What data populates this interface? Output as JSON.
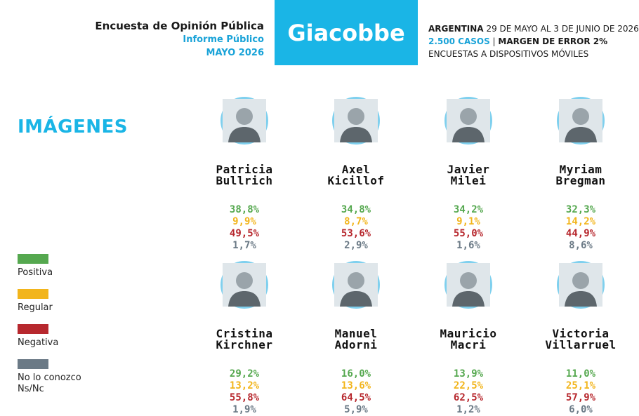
{
  "header": {
    "survey_title": "Encuesta de Opinión Pública",
    "report_type": "Informe Público",
    "report_date": "MAYO 2026",
    "brand": "Giacobbe",
    "country": "ARGENTINA",
    "date_range": "29 DE MAYO AL 3 DE JUNIO DE 2026",
    "cases": "2.500 CASOS",
    "separator": "|",
    "margin": "MARGEN DE ERROR 2%",
    "method": "ENCUESTAS A DISPOSITIVOS MÓVILES"
  },
  "section_title": "IMÁGENES",
  "colors": {
    "accent": "#1ab5e6",
    "positiva": "#55a84f",
    "regular": "#f2b51c",
    "negativa": "#b7282e",
    "no_conozco": "#6b7a86"
  },
  "legend": [
    {
      "key": "positiva",
      "label": "Positiva",
      "color": "#55a84f"
    },
    {
      "key": "regular",
      "label": "Regular",
      "color": "#f2b51c"
    },
    {
      "key": "negativa",
      "label": "Negativa",
      "color": "#b7282e"
    },
    {
      "key": "no_conozco",
      "label": "No lo conozco Ns/Nc",
      "label_line1": "No lo conozco",
      "label_line2": "Ns/Nc",
      "color": "#6b7a86"
    }
  ],
  "chart_data": {
    "type": "table",
    "columns": [
      "Positiva",
      "Regular",
      "Negativa",
      "No lo conozco Ns/Nc"
    ],
    "rows": [
      {
        "first": "Patricia",
        "last": "Bullrich",
        "values": [
          "38,8%",
          "9,9%",
          "49,5%",
          "1,7%"
        ]
      },
      {
        "first": "Axel",
        "last": "Kicillof",
        "values": [
          "34,8%",
          "8,7%",
          "53,6%",
          "2,9%"
        ]
      },
      {
        "first": "Javier",
        "last": "Milei",
        "values": [
          "34,2%",
          "9,1%",
          "55,0%",
          "1,6%"
        ]
      },
      {
        "first": "Myriam",
        "last": "Bregman",
        "values": [
          "32,3%",
          "14,2%",
          "44,9%",
          "8,6%"
        ]
      },
      {
        "first": "Cristina",
        "last": "Kirchner",
        "values": [
          "29,2%",
          "13,2%",
          "55,8%",
          "1,9%"
        ]
      },
      {
        "first": "Manuel",
        "last": "Adorni",
        "values": [
          "16,0%",
          "13,6%",
          "64,5%",
          "5,9%"
        ]
      },
      {
        "first": "Mauricio",
        "last": "Macri",
        "values": [
          "13,9%",
          "22,5%",
          "62,5%",
          "1,2%"
        ]
      },
      {
        "first": "Victoria",
        "last": "Villarruel",
        "values": [
          "11,0%",
          "25,1%",
          "57,9%",
          "6,0%"
        ]
      }
    ]
  }
}
